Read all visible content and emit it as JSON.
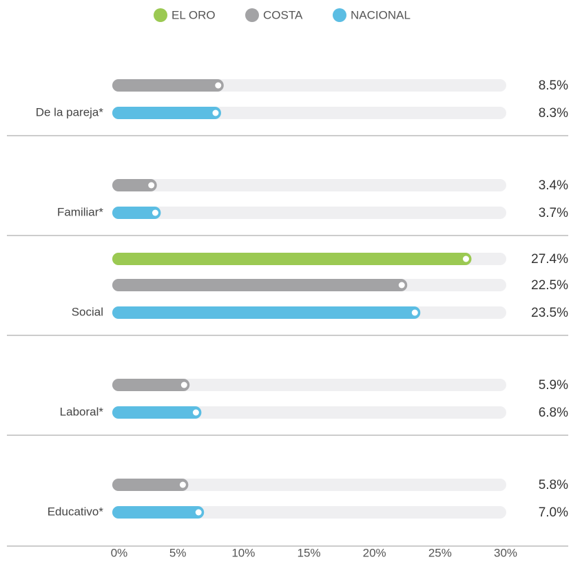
{
  "chart_data": {
    "type": "bar",
    "orientation": "horizontal",
    "categories": [
      "De la pareja*",
      "Familiar*",
      "Social",
      "Laboral*",
      "Educativo*"
    ],
    "series": [
      {
        "name": "EL ORO",
        "color": "#9bc952",
        "values": [
          null,
          null,
          27.4,
          null,
          null
        ],
        "value_labels": [
          null,
          null,
          "27.4%",
          null,
          null
        ]
      },
      {
        "name": "COSTA",
        "color": "#a3a3a5",
        "values": [
          8.5,
          3.4,
          22.5,
          5.9,
          5.8
        ],
        "value_labels": [
          "8.5%",
          "3.4%",
          "22.5%",
          "5.9%",
          "5.8%"
        ]
      },
      {
        "name": "NACIONAL",
        "color": "#5bbde3",
        "values": [
          8.3,
          3.7,
          23.5,
          6.8,
          7.0
        ],
        "value_labels": [
          "8.3%",
          "3.7%",
          "23.5%",
          "6.8%",
          "7.0%"
        ]
      }
    ],
    "xlim": [
      0,
      30
    ],
    "xticks": [
      {
        "value": 0,
        "label": "0%"
      },
      {
        "value": 5,
        "label": "5%"
      },
      {
        "value": 10,
        "label": "10%"
      },
      {
        "value": 15,
        "label": "15%"
      },
      {
        "value": 20,
        "label": "20%"
      },
      {
        "value": 25,
        "label": "25%"
      },
      {
        "value": 30,
        "label": "30%"
      }
    ],
    "legend": "top"
  }
}
